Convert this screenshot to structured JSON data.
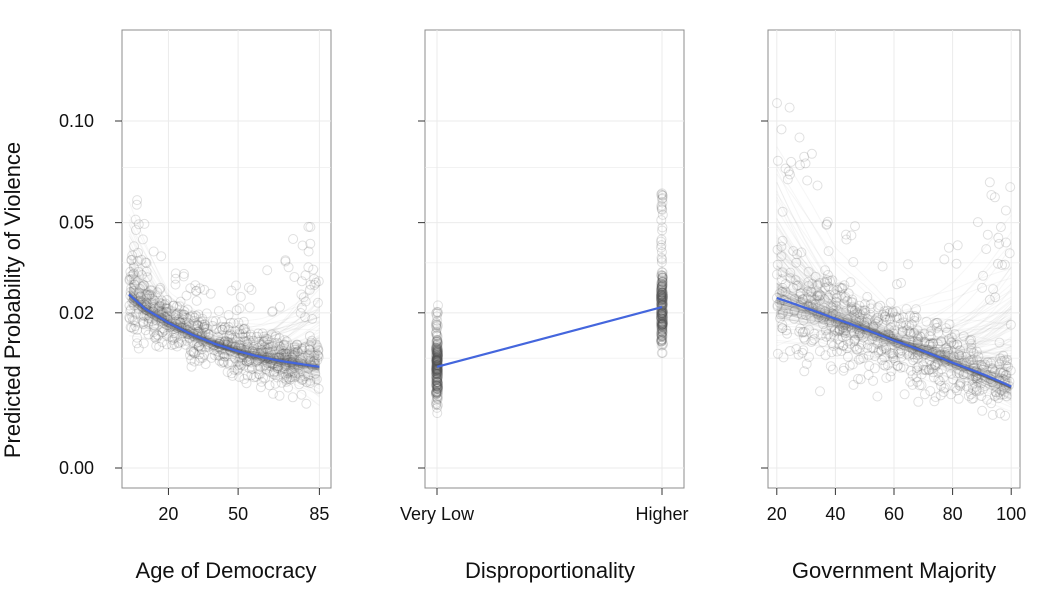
{
  "chart_data": {
    "type": "line",
    "ylabel": "Predicted Probability of Violence",
    "y_scale": "sqrt",
    "y_ticks": [
      0.0,
      0.02,
      0.05,
      0.1
    ],
    "y_tick_labels": [
      "0.00",
      "0.02",
      "0.05",
      "0.10"
    ],
    "ylim": [
      0,
      0.135
    ],
    "grid": true,
    "panels": [
      {
        "xlabel": "Age of Democracy",
        "x_ticks": [
          20,
          50,
          85
        ],
        "x_tick_labels": [
          "20",
          "50",
          "85"
        ],
        "xlim": [
          0,
          90
        ],
        "fit_line": {
          "x": [
            3,
            10,
            20,
            30,
            40,
            50,
            60,
            70,
            85
          ],
          "y": [
            0.025,
            0.021,
            0.0175,
            0.0148,
            0.0128,
            0.0113,
            0.0102,
            0.0094,
            0.0085
          ]
        },
        "simulation_band": {
          "x": [
            3,
            20,
            40,
            60,
            85
          ],
          "y_low": [
            0.0095,
            0.0085,
            0.006,
            0.004,
            0.002
          ],
          "y_high": [
            0.075,
            0.035,
            0.025,
            0.034,
            0.054
          ]
        }
      },
      {
        "xlabel": "Disproportionality",
        "x_categories": [
          "Very Low",
          "Higher"
        ],
        "fit_line": {
          "x": [
            "Very Low",
            "Higher"
          ],
          "y": [
            0.0085,
            0.0215
          ]
        },
        "simulation_band": {
          "x": [
            "Very Low",
            "Higher"
          ],
          "y_low": [
            0.0025,
            0.011
          ],
          "y_high": [
            0.022,
            0.063
          ]
        }
      },
      {
        "xlabel": "Government Majority",
        "x_ticks": [
          20,
          40,
          60,
          80,
          100
        ],
        "x_tick_labels": [
          "20",
          "40",
          "60",
          "80",
          "100"
        ],
        "xlim": [
          17,
          103
        ],
        "fit_line": {
          "x": [
            20,
            40,
            60,
            80,
            100
          ],
          "y": [
            0.024,
            0.0185,
            0.0135,
            0.0092,
            0.0055
          ]
        },
        "simulation_band": {
          "x": [
            20,
            40,
            60,
            80,
            100
          ],
          "y_low": [
            0.002,
            0.003,
            0.002,
            0.001,
            0.0005
          ],
          "y_high": [
            0.13,
            0.06,
            0.03,
            0.05,
            0.08
          ]
        }
      }
    ]
  }
}
